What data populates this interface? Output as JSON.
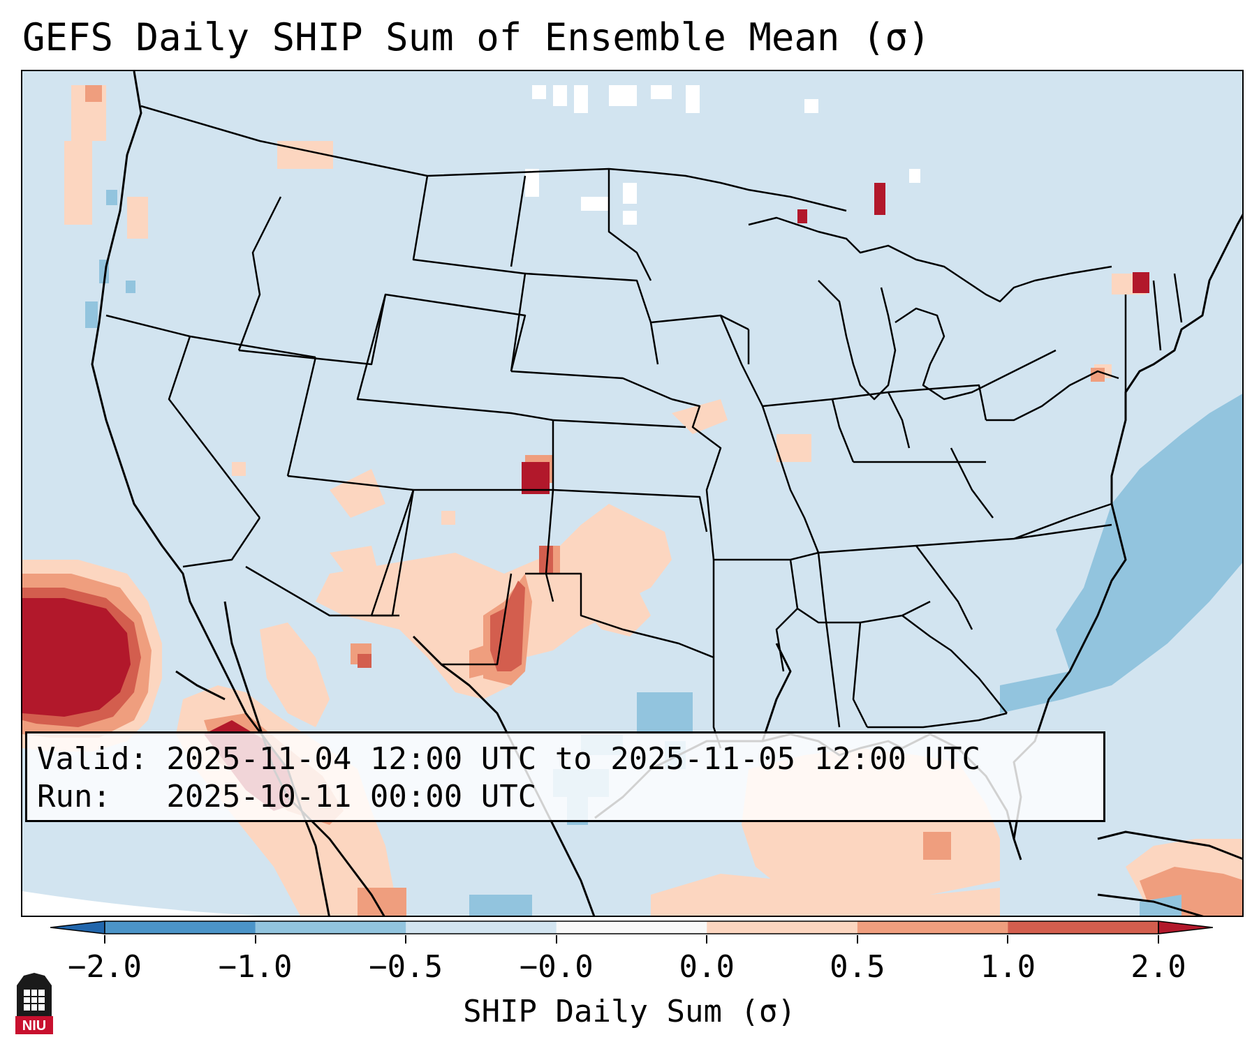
{
  "title": "GEFS Daily SHIP Sum of Ensemble Mean (σ)",
  "info": {
    "valid_line": "Valid: 2025-11-04 12:00 UTC to 2025-11-05 12:00 UTC",
    "run_line": "Run:   2025-10-11 00:00 UTC"
  },
  "colorbar": {
    "label": "SHIP Daily Sum (σ)",
    "ticks": [
      "−2.0",
      "−1.0",
      "−0.5",
      "−0.0",
      "0.0",
      "0.5",
      "1.0",
      "2.0"
    ],
    "colors": [
      "#4b94c8",
      "#92c4de",
      "#d2e4f0",
      "#f8f8f8",
      "#fcd6c0",
      "#ef9e7e",
      "#d35e4e",
      "#b2182b"
    ]
  },
  "logo": {
    "text": "NIU"
  },
  "regions": [
    {
      "name": "pacific-hotspot",
      "class": ">2.0"
    },
    {
      "name": "baja-gulf-of-california",
      "class": "1.0-2.0"
    },
    {
      "name": "sw-kansas-nebraska",
      "class": ">2.0"
    },
    {
      "name": "eastern-new-mexico-west-texas",
      "class": "0.5-2.0"
    },
    {
      "name": "atlantic-offshore",
      "class": "-1.0 to -0.5"
    },
    {
      "name": "gulf-of-mexico",
      "class": "0.0-0.5"
    },
    {
      "name": "caribbean",
      "class": "0.5-1.0"
    }
  ]
}
